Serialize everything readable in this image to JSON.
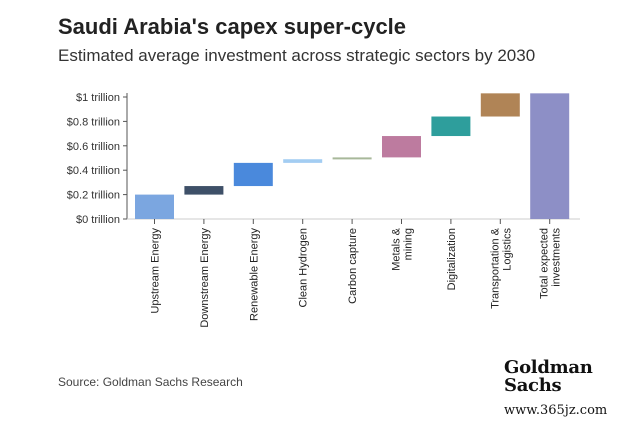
{
  "header": {
    "title": "Saudi Arabia's capex super-cycle",
    "subtitle": "Estimated average investment across strategic sectors by 2030"
  },
  "chart_data": {
    "type": "waterfall",
    "title": "Saudi Arabia's capex super-cycle",
    "subtitle": "Estimated average investment across strategic sectors by 2030",
    "y_ticks": [
      "$0 trillion",
      "$0.2 trillion",
      "$0.4 trillion",
      "$0.6 trillion",
      "$0.8 trillion",
      "$1 trillion"
    ],
    "ylim": [
      0,
      1.0
    ],
    "unit": "trillion USD",
    "grid": false,
    "categories": [
      {
        "label": "Upstream Energy",
        "start": 0.0,
        "end": 0.2,
        "color": "#7ba6e0"
      },
      {
        "label": "Downstream Energy",
        "start": 0.2,
        "end": 0.27,
        "color": "#3e5068"
      },
      {
        "label": "Renewable Energy",
        "start": 0.27,
        "end": 0.46,
        "color": "#4a89dc"
      },
      {
        "label": "Clean Hydrogen",
        "start": 0.46,
        "end": 0.49,
        "color": "#a3cdf2"
      },
      {
        "label": "Carbon capture",
        "start": 0.49,
        "end": 0.505,
        "color": "#a8b89a"
      },
      {
        "label": "Metals & mining",
        "start": 0.505,
        "end": 0.68,
        "color": "#bd7b9f"
      },
      {
        "label": "Digitalization",
        "start": 0.68,
        "end": 0.84,
        "color": "#2e9e9c"
      },
      {
        "label": "Transportation & Logistics",
        "start": 0.84,
        "end": 1.03,
        "color": "#b08456"
      },
      {
        "label": "Total expected investments",
        "start": 0.0,
        "end": 1.03,
        "color": "#8d8fc6"
      }
    ]
  },
  "footer": {
    "source": "Source: Goldman Sachs Research",
    "logo_line1": "Goldman",
    "logo_line2": "Sachs",
    "watermark": "www.365jz.com"
  }
}
